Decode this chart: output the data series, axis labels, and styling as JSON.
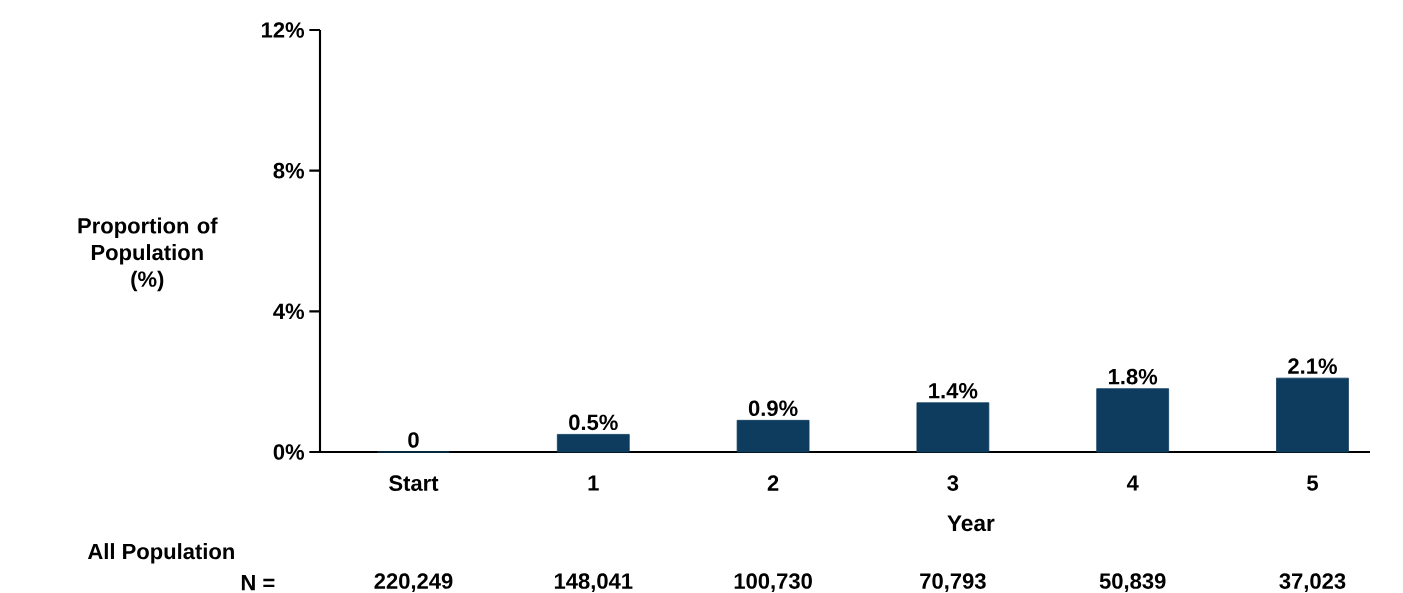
{
  "chart_data": {
    "type": "bar",
    "ylabel": "**Proportion of Population** (%)",
    "xlabel": "Year",
    "categories": [
      "Start",
      "1",
      "2",
      "3",
      "4",
      "5"
    ],
    "values": [
      0,
      0.5,
      0.9,
      1.4,
      1.8,
      2.1
    ],
    "value_labels": [
      "0",
      "0.5%",
      "0.9%",
      "1.4%",
      "1.8%",
      "2.1%"
    ],
    "color": "#0e3c5e",
    "ylim": [
      0,
      12
    ],
    "yticks": [
      {
        "value": 0,
        "label": "0%"
      },
      {
        "value": 4,
        "label": "4%"
      },
      {
        "value": 8,
        "label": "8%"
      },
      {
        "value": 12,
        "label": "12%"
      }
    ],
    "grid": false,
    "annotations": [
      "All Population",
      "N =",
      "220,249",
      "148,041",
      "100,730",
      "70,793",
      "50,839",
      "37,023"
    ]
  }
}
